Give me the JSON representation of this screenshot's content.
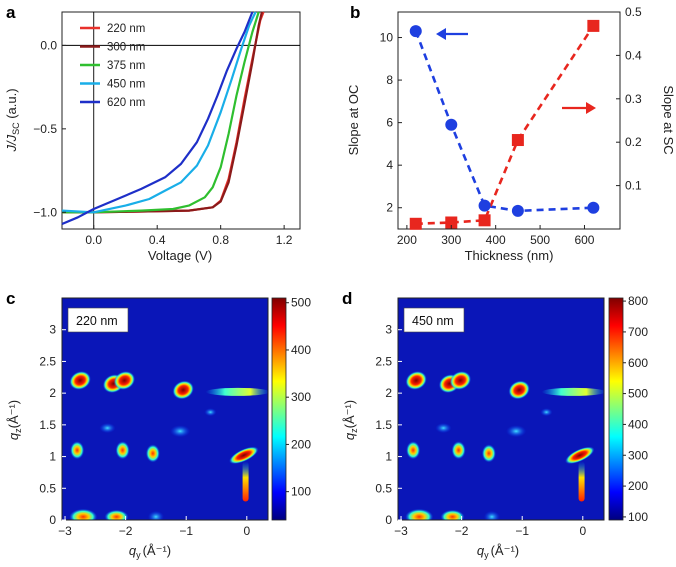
{
  "chart_data": [
    {
      "panel": "a",
      "type": "line",
      "xlabel": "Voltage (V)",
      "ylabel": "J/J_SC (a.u.)",
      "ylabel_main": "J/J",
      "ylabel_sub": "SC",
      "ylabel_tail": " (a.u.)",
      "xlim": [
        -0.2,
        1.3
      ],
      "ylim": [
        -1.1,
        0.2
      ],
      "xticks": [
        "0.0",
        "0.4",
        "0.8",
        "1.2"
      ],
      "xtick_values": [
        0.0,
        0.4,
        0.8,
        1.2
      ],
      "yticks": [
        "0.0",
        "−0.5",
        "−1.0"
      ],
      "ytick_values": [
        0.0,
        -0.5,
        -1.0
      ],
      "series": [
        {
          "name": "220 nm",
          "color": "#e8312b",
          "x": [
            -0.2,
            0.0,
            0.3,
            0.6,
            0.75,
            0.8,
            0.85,
            0.9,
            0.95,
            1.0,
            1.05,
            1.07
          ],
          "y": [
            -1.0,
            -1.0,
            -0.995,
            -0.99,
            -0.97,
            -0.93,
            -0.8,
            -0.58,
            -0.32,
            -0.08,
            0.15,
            0.2
          ]
        },
        {
          "name": "300 nm",
          "color": "#8b1a1a",
          "x": [
            -0.2,
            0.0,
            0.3,
            0.6,
            0.75,
            0.8,
            0.85,
            0.9,
            0.95,
            1.0,
            1.04,
            1.06
          ],
          "y": [
            -1.0,
            -1.0,
            -0.995,
            -0.99,
            -0.97,
            -0.935,
            -0.82,
            -0.6,
            -0.35,
            -0.1,
            0.12,
            0.2
          ]
        },
        {
          "name": "375 nm",
          "color": "#2fbf2f",
          "x": [
            -0.2,
            0.0,
            0.3,
            0.5,
            0.6,
            0.7,
            0.75,
            0.8,
            0.85,
            0.9,
            0.95,
            1.0,
            1.04
          ],
          "y": [
            -1.0,
            -1.0,
            -0.99,
            -0.98,
            -0.96,
            -0.91,
            -0.85,
            -0.73,
            -0.53,
            -0.3,
            -0.1,
            0.08,
            0.2
          ]
        },
        {
          "name": "450 nm",
          "color": "#19aee8",
          "x": [
            -0.2,
            0.0,
            0.2,
            0.35,
            0.45,
            0.55,
            0.65,
            0.72,
            0.8,
            0.87,
            0.93,
            0.98,
            1.02
          ],
          "y": [
            -0.99,
            -1.0,
            -0.96,
            -0.92,
            -0.87,
            -0.82,
            -0.72,
            -0.6,
            -0.4,
            -0.2,
            -0.02,
            0.12,
            0.2
          ]
        },
        {
          "name": "620 nm",
          "color": "#1e2fc8",
          "x": [
            -0.2,
            -0.1,
            0.0,
            0.15,
            0.3,
            0.45,
            0.55,
            0.65,
            0.72,
            0.78,
            0.84,
            0.9,
            0.95,
            1.0
          ],
          "y": [
            -1.07,
            -1.03,
            -0.98,
            -0.92,
            -0.86,
            -0.79,
            -0.71,
            -0.58,
            -0.44,
            -0.3,
            -0.15,
            -0.02,
            0.08,
            0.2
          ]
        }
      ]
    },
    {
      "panel": "b",
      "type": "scatter",
      "xlabel": "Thickness (nm)",
      "ylabel_left": "Slope at OC",
      "ylabel_right": "Slope at SC",
      "xlim": [
        180,
        680
      ],
      "ylim_left": [
        1,
        11.2
      ],
      "ylim_right": [
        0,
        0.5
      ],
      "xticks": [
        "200",
        "300",
        "400",
        "500",
        "600"
      ],
      "xtick_values": [
        200,
        300,
        400,
        500,
        600
      ],
      "yticks_left": [
        "2",
        "4",
        "6",
        "8",
        "10"
      ],
      "ytick_left_values": [
        2,
        4,
        6,
        8,
        10
      ],
      "yticks_right": [
        "0.1",
        "0.2",
        "0.3",
        "0.4",
        "0.5"
      ],
      "ytick_right_values": [
        0.1,
        0.2,
        0.3,
        0.4,
        0.5
      ],
      "series": [
        {
          "name": "Slope at OC",
          "axis": "left",
          "color": "#1e3fe0",
          "marker": "circle",
          "x": [
            220,
            300,
            375,
            450,
            620
          ],
          "y": [
            10.3,
            5.9,
            2.1,
            1.85,
            2.0
          ]
        },
        {
          "name": "Slope at SC",
          "axis": "right",
          "color": "#e8261e",
          "marker": "square",
          "x": [
            220,
            300,
            375,
            450,
            620
          ],
          "y": [
            0.012,
            0.015,
            0.02,
            0.205,
            0.468
          ]
        }
      ]
    },
    {
      "panel": "c",
      "type": "heatmap",
      "label": "220 nm",
      "xlabel": "q_y (Å⁻¹)",
      "ylabel": "q_z (Å⁻¹)",
      "xlim": [
        -3.05,
        0.35
      ],
      "ylim": [
        0,
        3.5
      ],
      "xticks": [
        "−3",
        "−2",
        "−1",
        "0"
      ],
      "xtick_values": [
        -3,
        -2,
        -1,
        0
      ],
      "yticks": [
        "0",
        "0.5",
        "1",
        "1.5",
        "2",
        "2.5",
        "3"
      ],
      "ytick_values": [
        0,
        0.5,
        1,
        1.5,
        2,
        2.5,
        3
      ],
      "colorbar_ticks": [
        "500",
        "400",
        "300",
        "200",
        "100"
      ],
      "colorbar_values": [
        500,
        400,
        300,
        200,
        100
      ],
      "colorbar_range": [
        40,
        510
      ],
      "peaks": [
        {
          "qy": -2.75,
          "qz": 2.2,
          "intensity": "high"
        },
        {
          "qy": -2.2,
          "qz": 2.15,
          "intensity": "high"
        },
        {
          "qy": -2.02,
          "qz": 2.2,
          "intensity": "high"
        },
        {
          "qy": -1.05,
          "qz": 2.05,
          "intensity": "high"
        },
        {
          "qy": -0.15,
          "qz": 2.02,
          "intensity": "streak"
        },
        {
          "qy": -2.8,
          "qz": 1.1,
          "intensity": "medium"
        },
        {
          "qy": -2.05,
          "qz": 1.1,
          "intensity": "medium"
        },
        {
          "qy": -1.55,
          "qz": 1.05,
          "intensity": "medium"
        },
        {
          "qy": -0.05,
          "qz": 1.02,
          "intensity": "high"
        },
        {
          "qy": -0.02,
          "qz": 0.45,
          "intensity": "streak"
        }
      ]
    },
    {
      "panel": "d",
      "type": "heatmap",
      "label": "450 nm",
      "xlabel": "q_y (Å⁻¹)",
      "ylabel": "q_z (Å⁻¹)",
      "xlim": [
        -3.05,
        0.35
      ],
      "ylim": [
        0,
        3.5
      ],
      "xticks": [
        "−3",
        "−2",
        "−1",
        "0"
      ],
      "xtick_values": [
        -3,
        -2,
        -1,
        0
      ],
      "yticks": [
        "0",
        "0.5",
        "1",
        "1.5",
        "2",
        "2.5",
        "3"
      ],
      "ytick_values": [
        0,
        0.5,
        1,
        1.5,
        2,
        2.5,
        3
      ],
      "colorbar_ticks": [
        "800",
        "700",
        "600",
        "500",
        "400",
        "300",
        "200",
        "100"
      ],
      "colorbar_values": [
        800,
        700,
        600,
        500,
        400,
        300,
        200,
        100
      ],
      "colorbar_range": [
        90,
        810
      ],
      "peaks": [
        {
          "qy": -2.75,
          "qz": 2.2,
          "intensity": "high"
        },
        {
          "qy": -2.2,
          "qz": 2.15,
          "intensity": "high"
        },
        {
          "qy": -2.02,
          "qz": 2.2,
          "intensity": "high"
        },
        {
          "qy": -1.05,
          "qz": 2.05,
          "intensity": "high"
        },
        {
          "qy": -0.15,
          "qz": 2.02,
          "intensity": "streak"
        },
        {
          "qy": -2.8,
          "qz": 1.1,
          "intensity": "medium"
        },
        {
          "qy": -2.05,
          "qz": 1.1,
          "intensity": "medium"
        },
        {
          "qy": -1.55,
          "qz": 1.05,
          "intensity": "medium"
        },
        {
          "qy": -0.05,
          "qz": 1.02,
          "intensity": "high"
        },
        {
          "qy": -0.02,
          "qz": 0.45,
          "intensity": "streak"
        }
      ]
    }
  ],
  "panel_labels": {
    "a": "a",
    "b": "b",
    "c": "c",
    "d": "d"
  },
  "heatmap_axis": {
    "qy_main": "q",
    "qy_sub": "y",
    "qy_unit": "(Å⁻¹)",
    "qz_main": "q",
    "qz_sub": "z",
    "qz_unit": "(Å⁻¹)"
  }
}
